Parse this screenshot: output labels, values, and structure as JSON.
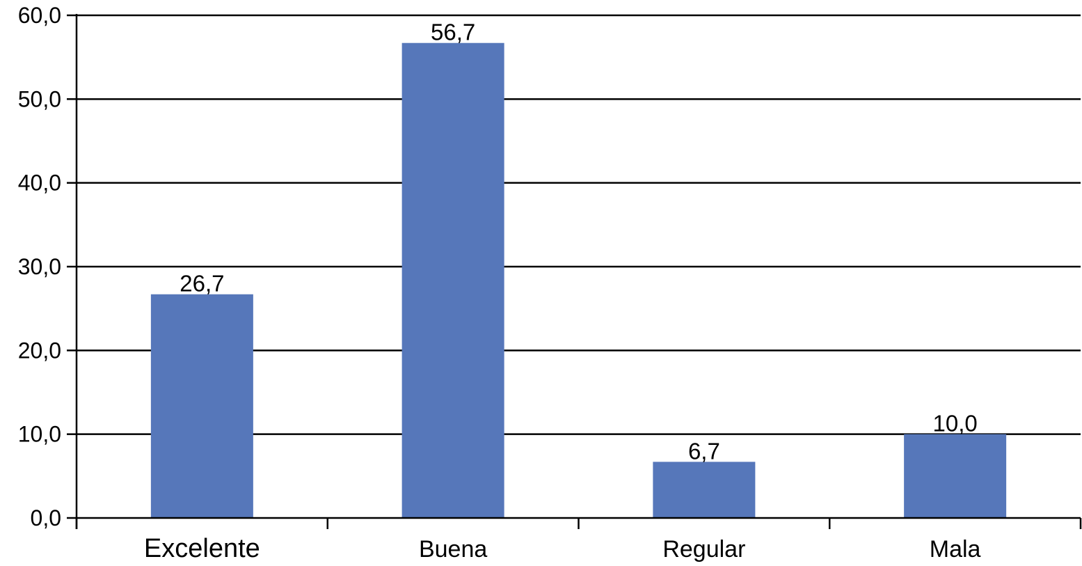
{
  "chart_data": {
    "type": "bar",
    "title": "",
    "xlabel": "",
    "ylabel": "",
    "categories": [
      "Excelente",
      "Buena",
      "Regular",
      "Mala"
    ],
    "values": [
      26.7,
      56.7,
      6.7,
      10.0
    ],
    "data_labels": [
      "26,7",
      "56,7",
      "6,7",
      "10,0"
    ],
    "ylim": [
      0,
      60
    ],
    "y_ticks": [
      0,
      10,
      20,
      30,
      40,
      50,
      60
    ],
    "y_tick_labels": [
      "0,0",
      "10,0",
      "20,0",
      "30,0",
      "40,0",
      "50,0",
      "60,0"
    ],
    "grid": true,
    "legend": "none",
    "bar_color": "#5677BA"
  }
}
